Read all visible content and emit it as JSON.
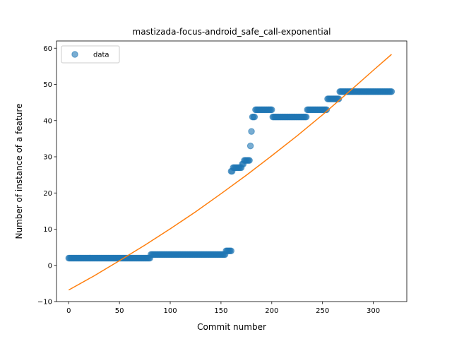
{
  "chart_data": {
    "type": "scatter",
    "title": "mastizada-focus-android_safe_call-exponential",
    "xlabel": "Commit number",
    "ylabel": "Number of instance of a feature",
    "xlim": [
      -12,
      333
    ],
    "ylim": [
      -10,
      62
    ],
    "xticks": [
      0,
      50,
      100,
      150,
      200,
      250,
      300
    ],
    "yticks": [
      -10,
      0,
      10,
      20,
      30,
      40,
      50,
      60
    ],
    "legend": {
      "placement": "top-left",
      "entries": [
        "data"
      ]
    },
    "grid": false,
    "colors": {
      "data": "#1f77b4",
      "fit": "#ff7f0e"
    },
    "series": [
      {
        "name": "data",
        "kind": "scatter",
        "segments": [
          {
            "x_start": 0,
            "x_end": 80,
            "y": 2
          },
          {
            "x_start": 81,
            "x_end": 154,
            "y": 3
          },
          {
            "x_start": 155,
            "x_end": 160,
            "y": 4
          },
          {
            "x_start": 160,
            "x_end": 161,
            "y": 26
          },
          {
            "x_start": 162,
            "x_end": 170,
            "y": 27
          },
          {
            "x_start": 171,
            "x_end": 172,
            "y": 28
          },
          {
            "x_start": 173,
            "x_end": 178,
            "y": 29
          },
          {
            "x_start": 179,
            "x_end": 179,
            "y": 33
          },
          {
            "x_start": 180,
            "x_end": 180,
            "y": 37
          },
          {
            "x_start": 181,
            "x_end": 183,
            "y": 41
          },
          {
            "x_start": 184,
            "x_end": 200,
            "y": 43
          },
          {
            "x_start": 201,
            "x_end": 234,
            "y": 41
          },
          {
            "x_start": 235,
            "x_end": 254,
            "y": 43
          },
          {
            "x_start": 255,
            "x_end": 266,
            "y": 46
          },
          {
            "x_start": 267,
            "x_end": 318,
            "y": 48
          }
        ]
      },
      {
        "name": "",
        "kind": "line",
        "x": [
          0,
          25,
          50,
          75,
          100,
          125,
          150,
          175,
          200,
          225,
          250,
          275,
          300,
          318
        ],
        "y": [
          -6.8,
          -2.9,
          1.3,
          5.6,
          10.1,
          14.8,
          19.8,
          24.9,
          30.3,
          35.8,
          41.6,
          47.7,
          53.9,
          58.3
        ]
      }
    ]
  }
}
